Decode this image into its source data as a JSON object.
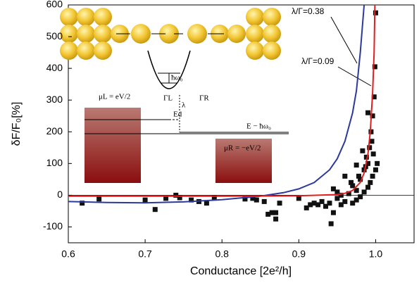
{
  "chart_data": {
    "type": "scatter",
    "x_label": "Conductance [2e²/h]",
    "y_label": "δF/F₀[%]",
    "xlim": [
      0.6,
      1.05
    ],
    "ylim": [
      -150,
      600
    ],
    "xticks": [
      0.6,
      0.7,
      0.8,
      0.9,
      {
        "value": 1,
        "label": "1.0"
      }
    ],
    "yticks": [
      -100,
      0,
      100,
      200,
      300,
      400,
      500,
      600
    ],
    "hline": 0,
    "series": [
      {
        "type": "scatter",
        "color": "#111111",
        "x": [
          0.618,
          0.64,
          0.7,
          0.713,
          0.727,
          0.74,
          0.745,
          0.76,
          0.77,
          0.78,
          0.79,
          0.83,
          0.84,
          0.845,
          0.855,
          0.86,
          0.865,
          0.87,
          0.875,
          0.87,
          0.9,
          0.91,
          0.915,
          0.92,
          0.925,
          0.93,
          0.935,
          0.94,
          0.942,
          0.945,
          0.95,
          0.955,
          0.96,
          0.965,
          0.97,
          0.975,
          0.978,
          0.98,
          0.985,
          0.988,
          0.99,
          0.992,
          0.994,
          0.996,
          0.998,
          0.999,
          1.0,
          0.997,
          0.993,
          0.99,
          0.985,
          0.98,
          0.975,
          0.97,
          0.96,
          0.955,
          0.95,
          0.945,
          0.99,
          0.995,
          0.983,
          0.987,
          1.0,
          1.002,
          0.996,
          0.975,
          0.968
        ],
        "values": [
          -25,
          -12,
          -15,
          -45,
          -10,
          0,
          -8,
          -15,
          -20,
          -25,
          -8,
          -12,
          -10,
          -15,
          -20,
          -60,
          -55,
          -55,
          -25,
          -75,
          -10,
          -40,
          -30,
          -25,
          -30,
          -20,
          -35,
          -25,
          -90,
          -55,
          -10,
          -30,
          -20,
          5,
          30,
          15,
          60,
          50,
          80,
          120,
          100,
          150,
          200,
          250,
          310,
          405,
          575,
          130,
          40,
          25,
          10,
          -5,
          -15,
          -25,
          60,
          0,
          10,
          20,
          260,
          170,
          140,
          90,
          80,
          100,
          60,
          95,
          40
        ]
      },
      {
        "type": "line",
        "color": "#2b3a9c",
        "x": [
          0.6,
          0.65,
          0.7,
          0.75,
          0.8,
          0.85,
          0.88,
          0.9,
          0.92,
          0.94,
          0.95,
          0.96,
          0.97,
          0.975,
          0.98,
          0.985
        ],
        "values": [
          -20,
          -23,
          -24,
          -21,
          -14,
          -3,
          8,
          20,
          40,
          80,
          115,
          170,
          260,
          330,
          450,
          600
        ]
      },
      {
        "type": "line",
        "color": "#e02020",
        "x": [
          0.6,
          0.7,
          0.8,
          0.9,
          0.95,
          0.96,
          0.97,
          0.98,
          0.985,
          0.99,
          0.993,
          0.996,
          0.998,
          0.999
        ],
        "values": [
          -3,
          -3,
          -3,
          -2,
          2,
          6,
          15,
          40,
          70,
          130,
          200,
          320,
          450,
          600
        ]
      }
    ],
    "annotations": [
      "λ/Γ=0.38",
      "λ/Γ=0.09"
    ],
    "inset": {
      "hw": "ħω₀",
      "mu_l": "μL = eV/2",
      "gamma_l": "ΓL",
      "gamma_r": "ΓR",
      "lambda": "λ",
      "ed": "Ed",
      "e_hw": "E − ħω₀",
      "mu_r": "μR = −eV/2"
    }
  }
}
